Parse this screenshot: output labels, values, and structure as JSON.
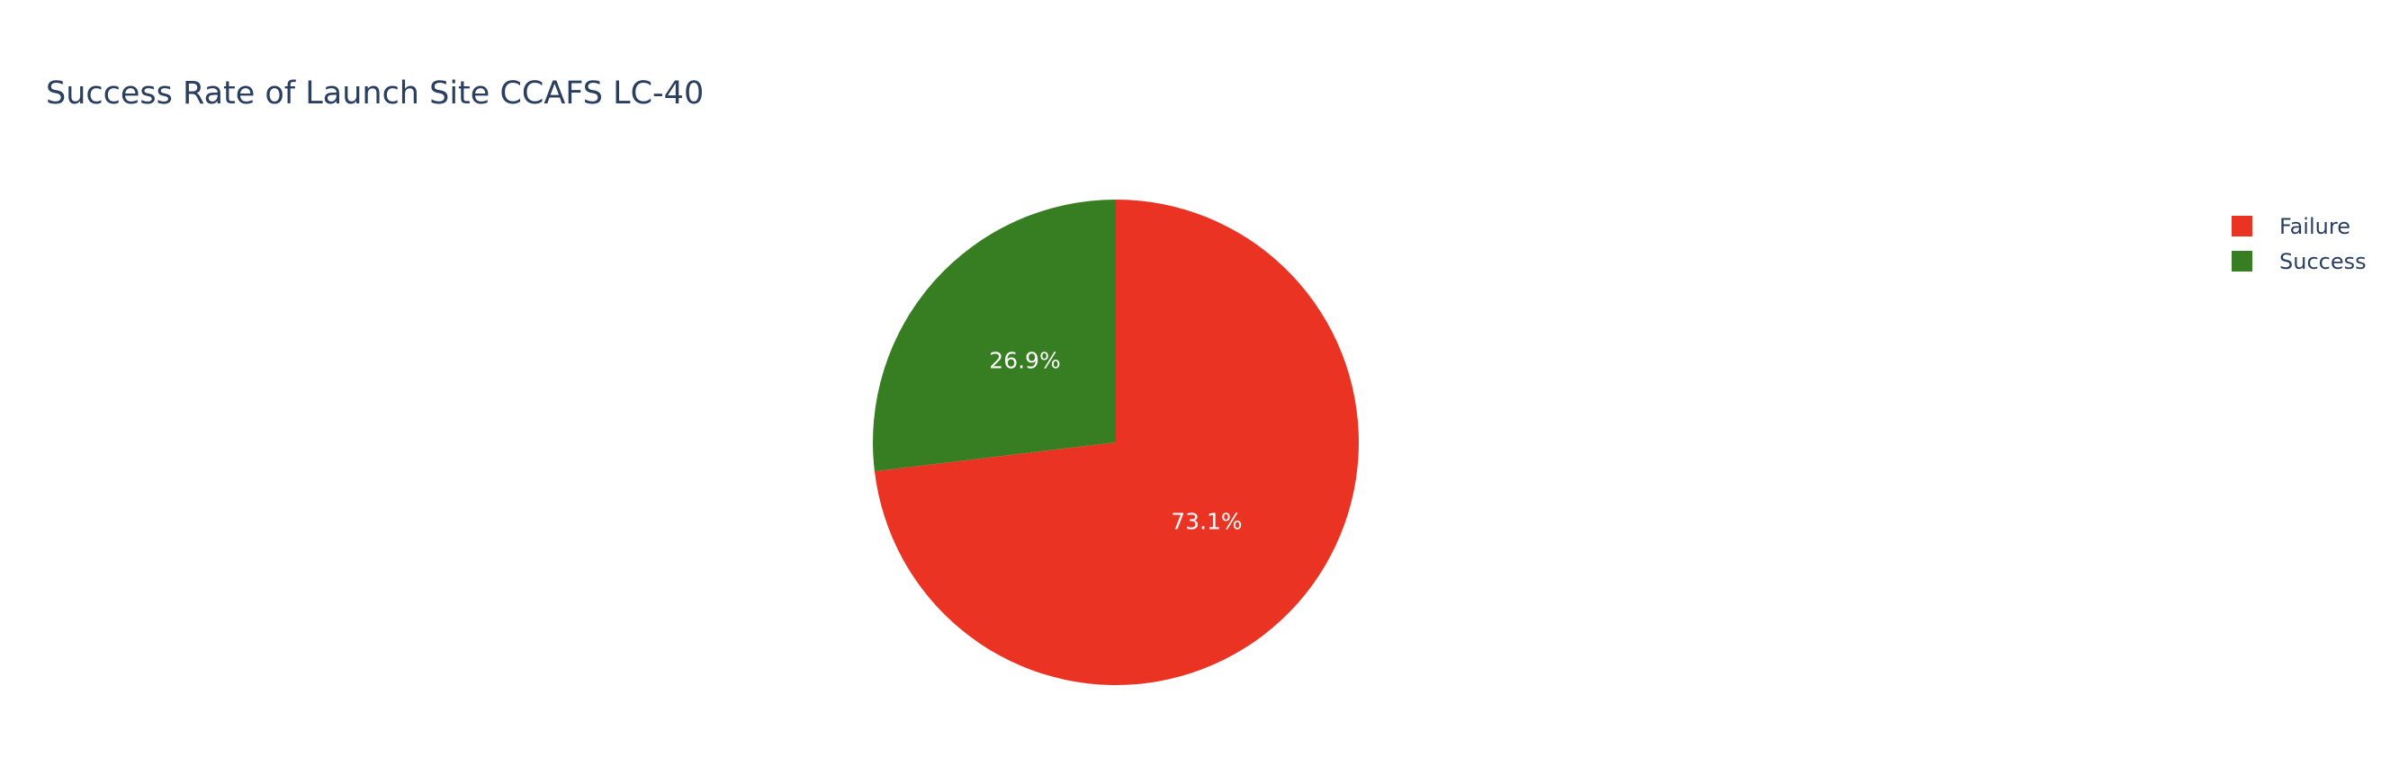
{
  "chart_data": {
    "type": "pie",
    "title": "Success Rate of Launch Site CCAFS LC-40",
    "slices": [
      {
        "label": "Failure",
        "percent": 73.1,
        "percent_label": "73.1%",
        "color": "#EB3323"
      },
      {
        "label": "Success",
        "percent": 26.9,
        "percent_label": "26.9%",
        "color": "#377E22"
      }
    ],
    "direction": "clockwise",
    "start_angle_deg": 90,
    "legend": {
      "placement": "top-right",
      "entries": [
        "Failure",
        "Success"
      ]
    }
  }
}
